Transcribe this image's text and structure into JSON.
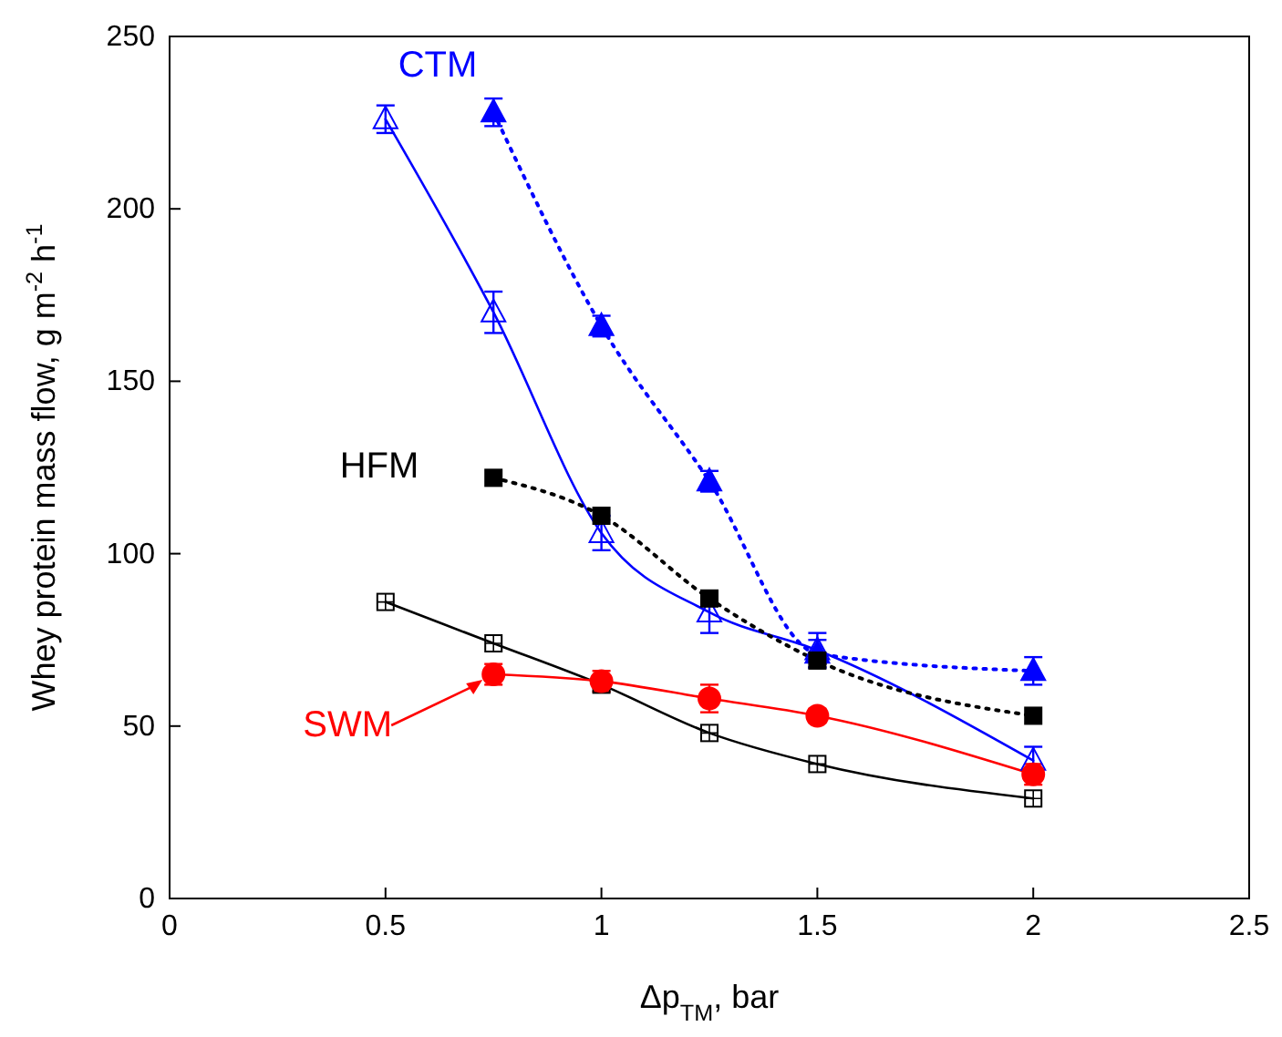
{
  "chart_data": {
    "type": "line",
    "xlabel": "Δp$_{TM}$, bar",
    "ylabel": "Whey protein mass flow, g m$^{-2}$ h$^{-1}$",
    "xlim": [
      0,
      2.5
    ],
    "xticks": [
      0,
      0.5,
      1,
      1.5,
      2,
      2.5
    ],
    "ylim": [
      0,
      250
    ],
    "yticks": [
      0,
      50,
      100,
      150,
      200,
      250
    ],
    "grid": false,
    "series": [
      {
        "color": "#0000ff",
        "x": [
          0.5,
          0.75,
          1,
          1.25,
          1.5,
          2
        ],
        "values": [
          226,
          170,
          106,
          83,
          72,
          40
        ],
        "errors": [
          4,
          6,
          5,
          6,
          5,
          4
        ],
        "marker": "triangle",
        "line_style": "solid"
      },
      {
        "color": "#0000ff",
        "x": [
          0.75,
          1,
          1.25,
          1.5,
          2
        ],
        "values": [
          228,
          166,
          121,
          71,
          66
        ],
        "errors": [
          4,
          3,
          3,
          4,
          4
        ],
        "marker": "triangle",
        "line_style": "dotted"
      },
      {
        "color": "#000000",
        "x": [
          0.75,
          1,
          1.25,
          1.5,
          2
        ],
        "values": [
          122,
          111,
          87,
          69,
          53
        ],
        "marker": "square",
        "line_style": "dotted"
      },
      {
        "color": "#000000",
        "x": [
          0.5,
          0.75,
          1,
          1.25,
          1.5,
          2
        ],
        "values": [
          86,
          74,
          62,
          48,
          39,
          29
        ],
        "marker": "square",
        "line_style": "solid"
      },
      {
        "color": "#ff0000",
        "x": [
          0.75,
          1,
          1.25,
          1.5,
          2
        ],
        "values": [
          65,
          63,
          58,
          53,
          36
        ],
        "errors": [
          3,
          3,
          4,
          2,
          3
        ],
        "marker": "circle",
        "line_style": "solid"
      }
    ],
    "annotations": [
      "CTM",
      "HFM",
      {
        "text": "SWM",
        "x": 0.75,
        "y": 65
      }
    ]
  }
}
